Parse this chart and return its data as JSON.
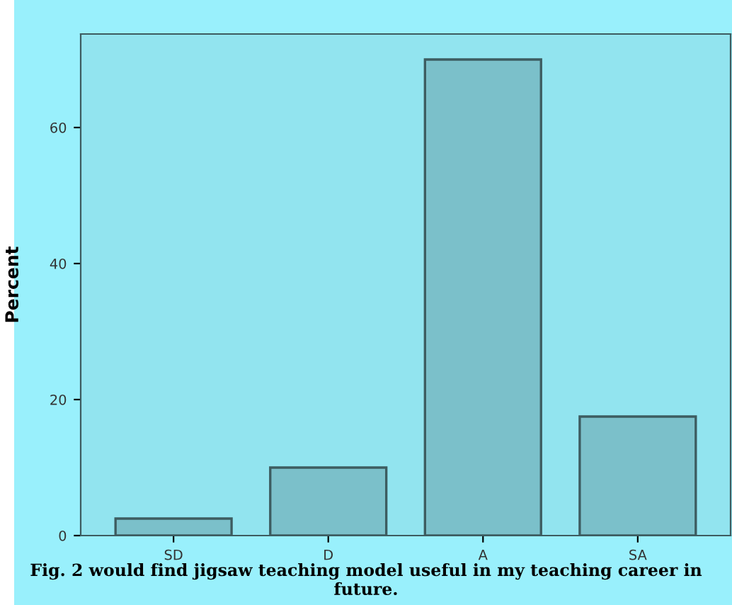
{
  "chart_data": {
    "type": "bar",
    "ylabel": "Percent",
    "categories": [
      "SD",
      "D",
      "A",
      "SA"
    ],
    "values": [
      2.5,
      10,
      70,
      17.5
    ],
    "color": "#7bc0ca",
    "ylim": [
      0,
      73.75
    ],
    "yticks": [
      0,
      20,
      40,
      60
    ],
    "grid": false,
    "annotations": [
      "Fig. 2 would find jigsaw teaching model useful in my teaching career in future."
    ]
  }
}
